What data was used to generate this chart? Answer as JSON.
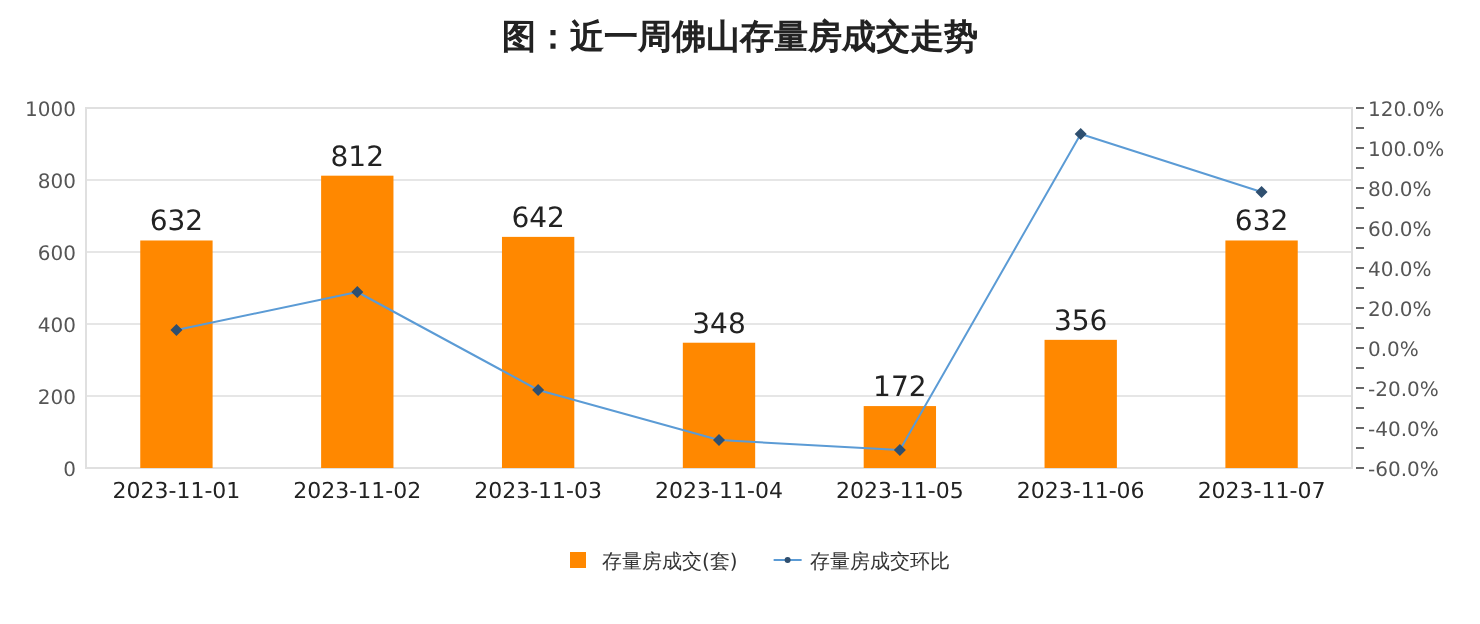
{
  "chart_data": {
    "type": "bar",
    "title": "图：近一周佛山存量房成交走势",
    "categories": [
      "2023-11-01",
      "2023-11-02",
      "2023-11-03",
      "2023-11-04",
      "2023-11-05",
      "2023-11-06",
      "2023-11-07"
    ],
    "series": [
      {
        "name": "存量房成交(套)",
        "color": "#ff8800",
        "values": [
          632,
          812,
          642,
          348,
          172,
          356,
          632
        ],
        "value_labels": [
          "632",
          "812",
          "642",
          "348",
          "172",
          "356",
          "632"
        ]
      },
      {
        "name": "存量房成交环比",
        "type": "line",
        "axis": "y2",
        "color": "#5b9bd5",
        "marker": "diamond",
        "values": [
          9,
          28,
          -21,
          -46,
          -51,
          107,
          78
        ]
      }
    ],
    "ylim": [
      0,
      1000
    ],
    "yticks": [
      0,
      200,
      400,
      600,
      800,
      1000
    ],
    "y2lim": [
      -60,
      120
    ],
    "y2ticks": [
      {
        "value": -60,
        "label": "-60.0%"
      },
      {
        "value": -50,
        "label": null
      },
      {
        "value": -40,
        "label": "-40.0%"
      },
      {
        "value": -30,
        "label": null
      },
      {
        "value": -20,
        "label": "-20.0%"
      },
      {
        "value": -10,
        "label": null
      },
      {
        "value": 0,
        "label": "0.0%"
      },
      {
        "value": 10,
        "label": null
      },
      {
        "value": 20,
        "label": "20.0%"
      },
      {
        "value": 30,
        "label": null
      },
      {
        "value": 40,
        "label": "40.0%"
      },
      {
        "value": 50,
        "label": null
      },
      {
        "value": 60,
        "label": "60.0%"
      },
      {
        "value": 70,
        "label": null
      },
      {
        "value": 80,
        "label": "80.0%"
      },
      {
        "value": 90,
        "label": null
      },
      {
        "value": 100,
        "label": "100.0%"
      },
      {
        "value": 110,
        "label": null
      },
      {
        "value": 120,
        "label": "120.0%"
      }
    ],
    "grid": "y",
    "legend": "bottom"
  }
}
